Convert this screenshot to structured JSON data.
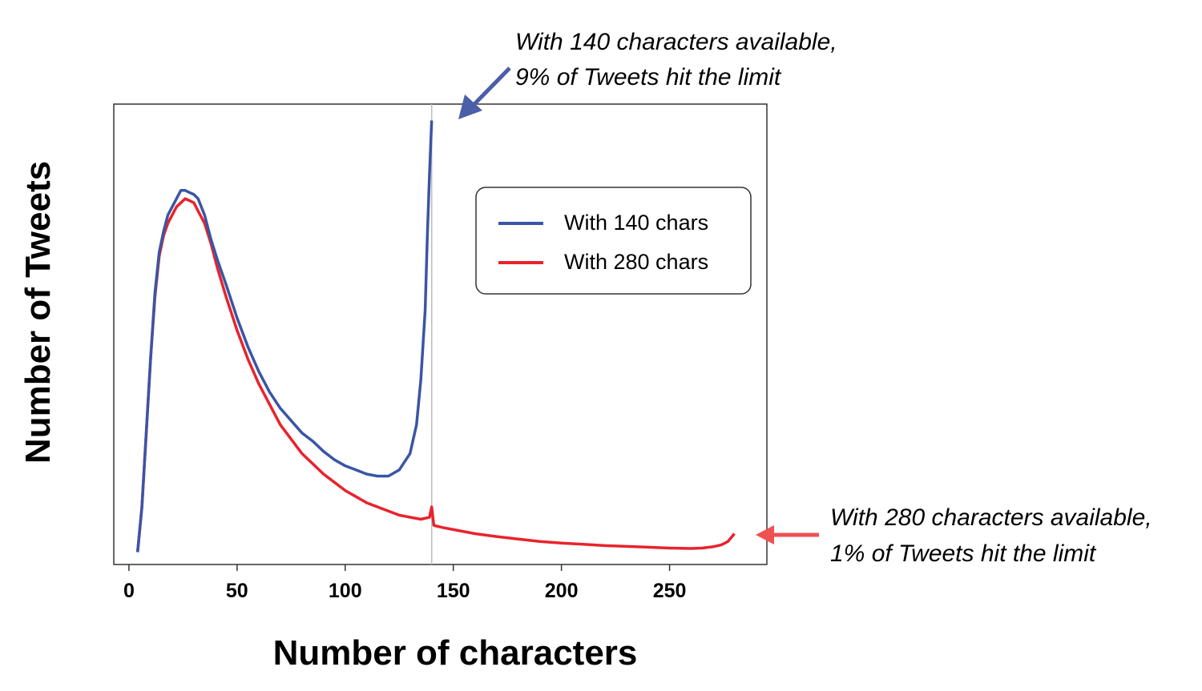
{
  "chart_data": {
    "type": "line",
    "title": "",
    "xlabel": "Number of characters",
    "ylabel": "Number of Tweets",
    "xlim": [
      -7,
      295
    ],
    "ylim": [
      0,
      112
    ],
    "x_ticks": [
      0,
      50,
      100,
      150,
      200,
      250
    ],
    "y_ticks_shown": false,
    "grid": false,
    "legend_position": "top-right",
    "reference_line_x": 140,
    "series": [
      {
        "name": "With 140 chars",
        "color": "#3a55a4",
        "x": [
          4,
          6,
          8,
          10,
          12,
          14,
          16,
          18,
          20,
          22,
          24,
          26,
          28,
          30,
          32,
          35,
          38,
          41,
          45,
          50,
          55,
          60,
          65,
          70,
          75,
          80,
          85,
          90,
          95,
          100,
          105,
          110,
          115,
          120,
          125,
          130,
          133,
          135,
          137,
          138,
          139,
          140
        ],
        "y": [
          3,
          14,
          32,
          50,
          66,
          76,
          81,
          85,
          87,
          89,
          91,
          91,
          90.5,
          90,
          89,
          85,
          79,
          74,
          68,
          60,
          53,
          47,
          42,
          38,
          35,
          32,
          30,
          27.5,
          25.5,
          24,
          23,
          22,
          21.5,
          21.5,
          23,
          27,
          34,
          45,
          62,
          80,
          95,
          108
        ]
      },
      {
        "name": "With 280 chars",
        "color": "#e8232c",
        "x": [
          4,
          6,
          8,
          10,
          12,
          14,
          16,
          18,
          20,
          22,
          24,
          26,
          28,
          30,
          32,
          35,
          38,
          41,
          45,
          50,
          55,
          60,
          65,
          70,
          75,
          80,
          85,
          90,
          95,
          100,
          105,
          110,
          115,
          120,
          125,
          130,
          135,
          139,
          140,
          141,
          145,
          150,
          160,
          170,
          180,
          190,
          200,
          210,
          220,
          230,
          240,
          250,
          260,
          265,
          270,
          274,
          277,
          280
        ],
        "y": [
          3,
          14,
          32,
          50,
          65,
          75,
          80,
          83,
          85,
          87,
          88,
          89,
          88.5,
          88,
          86,
          83,
          78,
          72,
          65,
          57,
          50,
          44,
          39,
          34,
          30.5,
          27,
          24.5,
          22,
          20,
          18,
          16.5,
          15,
          14,
          13,
          12,
          11.5,
          11,
          11.5,
          14,
          9.5,
          9,
          8.5,
          7.5,
          6.8,
          6.2,
          5.6,
          5.2,
          4.9,
          4.6,
          4.4,
          4.2,
          4.0,
          3.9,
          4.0,
          4.3,
          4.8,
          5.6,
          7.5
        ]
      }
    ],
    "annotations": [
      {
        "line1": "With 140 characters available,",
        "line2": "9% of Tweets hit the limit",
        "color": "#4b5ea8"
      },
      {
        "line1": "With 280 characters available,",
        "line2": "1% of Tweets hit the limit",
        "color": "#ef5050"
      }
    ]
  }
}
